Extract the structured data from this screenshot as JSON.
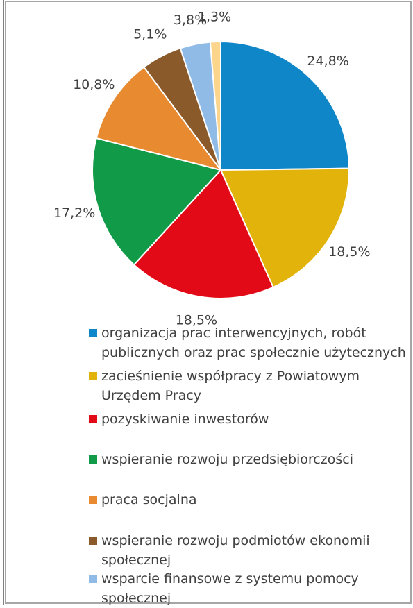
{
  "chart_data": {
    "type": "pie",
    "categories": [
      "organizacja prac interwencyjnych, robót publicznych oraz prac społecznie użytecznych",
      "zacieśnienie współpracy z Powiatowym Urzędem Pracy",
      "pozyskiwanie inwestorów",
      "wspieranie rozwoju przedsiębiorczości",
      "praca socjalna",
      "wspieranie rozwoju podmiotów ekonomii społecznej",
      "wsparcie finansowe z systemu pomocy społecznej",
      null
    ],
    "values": [
      24.8,
      18.5,
      18.5,
      17.2,
      10.8,
      5.1,
      3.8,
      1.3
    ],
    "value_labels": [
      "24,8%",
      "18,5%",
      "18,5%",
      "17,2%",
      "10,8%",
      "5,1%",
      "3,8%",
      "1,3%"
    ],
    "colors": [
      "#0f86c8",
      "#e2b40b",
      "#e30a17",
      "#119a48",
      "#e88a30",
      "#8b5a2b",
      "#8fbbe6",
      "#fbd58c"
    ]
  }
}
